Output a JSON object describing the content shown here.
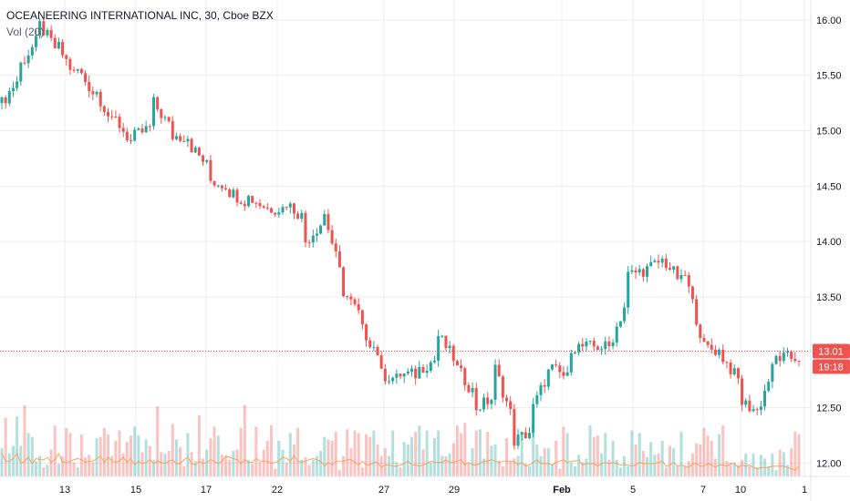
{
  "chart_data": {
    "type": "candlestick",
    "title": "OCEANEERING INTERNATIONAL INC, 30, Cboe BZX",
    "indicator_label": "Vol (20)",
    "price_axis": {
      "ylim": [
        11.88,
        16.18
      ],
      "ticks": [
        "12.00",
        "12.50",
        "13.00",
        "13.50",
        "14.00",
        "14.50",
        "15.00",
        "15.50",
        "16.00"
      ],
      "tick_values": [
        12.0,
        12.5,
        13.0,
        13.5,
        14.0,
        14.5,
        15.0,
        15.5,
        16.0
      ]
    },
    "time_axis": {
      "labels": [
        "13",
        "15",
        "17",
        "22",
        "27",
        "29",
        "Feb",
        "5",
        "7",
        "10",
        "1"
      ],
      "bold": [
        false,
        false,
        false,
        false,
        false,
        false,
        true,
        false,
        false,
        false,
        false
      ]
    },
    "last_price": {
      "label": "13.01",
      "value": 13.01
    },
    "countdown": {
      "label": "19:18"
    },
    "colors": {
      "up": "#26a69a",
      "down": "#ef5350",
      "volume_ma": "#f7a35c",
      "grid": "#e9ecf1",
      "price_line": "#ef5350"
    },
    "grid": true,
    "anchors": [
      [
        15.1,
        15.25
      ],
      [
        15.5,
        15.6
      ],
      [
        15.85,
        15.95
      ],
      [
        15.7,
        15.75
      ],
      [
        15.45,
        15.55
      ],
      [
        15.3,
        15.35
      ],
      [
        15.0,
        15.1
      ],
      [
        14.85,
        14.95
      ],
      [
        15.05,
        15.25
      ],
      [
        15.0,
        14.95
      ],
      [
        14.95,
        14.85
      ],
      [
        14.65,
        14.55
      ],
      [
        14.5,
        14.45
      ],
      [
        14.35,
        14.4
      ],
      [
        14.3,
        14.3
      ],
      [
        14.3,
        14.35
      ],
      [
        14.2,
        14.0
      ],
      [
        14.2,
        14.25
      ],
      [
        13.6,
        13.55
      ],
      [
        13.3,
        13.2
      ],
      [
        12.95,
        12.8
      ],
      [
        12.75,
        12.8
      ],
      [
        12.8,
        12.85
      ],
      [
        12.95,
        13.15
      ],
      [
        12.9,
        12.85
      ],
      [
        12.6,
        12.5
      ],
      [
        12.6,
        12.85
      ],
      [
        12.35,
        12.2
      ],
      [
        12.3,
        12.5
      ],
      [
        12.9,
        12.85
      ],
      [
        12.75,
        13.05
      ],
      [
        13.05,
        13.05
      ],
      [
        13.05,
        13.05
      ],
      [
        13.5,
        13.7
      ],
      [
        13.75,
        13.75
      ],
      [
        13.85,
        13.8
      ],
      [
        13.6,
        13.7
      ],
      [
        13.05,
        13.05
      ],
      [
        13.0,
        12.95
      ],
      [
        12.7,
        12.55
      ],
      [
        12.45,
        12.55
      ],
      [
        13.05,
        12.95
      ],
      [
        12.95,
        13.0
      ]
    ],
    "volume": {
      "max": 100,
      "values": [
        22,
        46,
        18,
        24,
        47,
        24,
        56,
        34,
        31,
        12,
        16,
        7,
        9,
        21,
        40,
        10,
        16,
        38,
        34,
        11,
        7,
        33,
        15,
        17,
        11,
        30,
        31,
        38,
        33,
        16,
        28,
        36,
        18,
        27,
        32,
        39,
        32,
        19,
        29,
        24,
        13,
        55,
        19,
        18,
        20,
        41,
        29,
        23,
        8,
        34,
        19,
        12,
        48,
        14,
        21,
        30,
        39,
        32,
        17,
        16,
        13,
        20,
        21,
        38,
        56,
        13,
        10,
        39,
        11,
        21,
        28,
        40,
        6,
        28,
        21,
        11,
        34,
        25,
        38,
        13,
        15,
        9,
        13,
        16,
        20,
        31,
        29,
        28,
        35,
        5,
        16,
        37,
        22,
        36,
        34,
        7,
        33,
        31,
        36,
        25,
        16,
        22,
        16,
        36,
        11,
        7,
        27,
        25,
        31,
        35,
        40,
        21,
        36,
        11,
        30,
        36,
        16,
        16,
        18,
        26,
        40,
        34,
        42,
        10,
        22,
        36,
        37,
        14,
        35,
        24,
        25,
        12,
        8,
        30,
        12,
        14,
        16,
        35,
        10,
        8,
        37,
        25,
        16,
        22,
        22,
        9,
        28,
        6,
        39,
        34,
        11,
        8,
        17,
        11,
        14,
        40,
        31,
        32,
        18,
        34,
        13,
        28,
        13,
        7,
        16,
        8,
        36,
        25,
        34,
        20,
        15,
        27,
        17,
        18,
        28,
        7,
        24,
        22,
        8,
        35,
        8,
        12,
        18,
        26,
        25,
        38,
        32,
        28,
        14,
        33,
        40,
        12,
        11,
        11,
        9,
        13,
        18,
        8,
        18,
        7,
        17,
        14,
        8,
        18,
        5,
        21,
        19,
        9,
        22,
        35,
        33
      ],
      "ma": [
        18,
        12,
        12,
        14,
        18,
        10,
        12,
        15,
        10,
        14,
        13,
        13,
        15,
        11,
        13,
        18,
        11,
        11,
        12,
        13,
        14,
        13,
        11,
        12,
        12,
        14,
        16,
        11,
        15,
        12,
        11,
        12,
        15,
        11,
        14,
        9,
        12,
        10,
        11,
        13,
        10,
        12,
        11,
        10,
        12,
        13,
        10,
        10,
        13,
        15,
        10,
        9,
        12,
        10,
        11,
        13,
        12,
        10,
        12,
        16,
        15,
        14,
        13,
        10,
        13,
        11,
        11,
        14,
        12,
        12,
        12,
        10,
        11,
        12,
        15,
        14,
        12,
        16,
        12,
        11,
        12,
        13,
        14,
        13,
        12,
        8,
        11,
        9,
        12,
        12,
        12,
        13,
        13,
        11,
        9,
        12,
        9,
        9,
        11,
        11,
        7,
        9,
        9,
        8,
        8,
        9,
        10,
        12,
        9,
        9,
        8,
        9,
        10,
        12,
        11,
        11,
        11,
        13,
        11,
        11,
        12,
        13,
        9,
        11,
        9,
        9,
        10,
        12,
        12,
        13,
        12,
        11,
        12,
        12,
        12,
        12,
        9,
        11,
        8,
        9,
        11,
        13,
        10,
        10,
        10,
        9,
        11,
        12,
        13,
        11,
        12,
        12,
        13,
        9,
        10,
        10,
        10,
        8,
        10,
        11,
        10,
        11,
        10,
        9,
        9,
        9,
        8,
        9,
        11,
        10,
        10,
        10,
        10,
        11,
        12,
        8,
        9,
        11,
        8,
        9,
        8,
        7,
        10,
        10,
        8,
        8,
        10,
        9,
        7,
        9,
        9,
        8,
        10,
        10,
        7,
        9,
        8,
        9,
        7,
        6,
        7,
        7,
        7,
        8,
        8,
        8,
        8,
        7,
        6,
        5,
        8
      ]
    }
  }
}
